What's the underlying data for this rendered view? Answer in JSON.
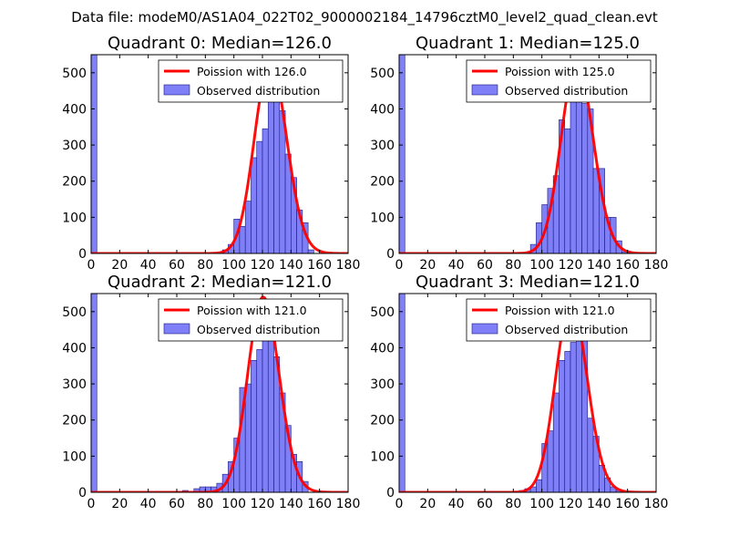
{
  "figure_title": "Data file: modeM0/AS1A04_022T02_9000002184_14796cztM0_level2_quad_clean.evt",
  "colors": {
    "bar_fill": "#7f7ff7",
    "bar_edge": "#1a1a80",
    "poisson_line": "#ff0000",
    "axis": "#000000"
  },
  "chart_data": [
    {
      "type": "bar",
      "title": "Quadrant 0: Median=126.0",
      "xlim": [
        0,
        180
      ],
      "ylim": [
        0,
        550
      ],
      "xticks": [
        0,
        20,
        40,
        60,
        80,
        100,
        120,
        140,
        160,
        180
      ],
      "yticks": [
        0,
        100,
        200,
        300,
        400,
        500
      ],
      "bin_width": 4,
      "legend": {
        "position": "top-right",
        "line_label": "Poission with 126.0",
        "bar_label": "Observed distribution"
      },
      "poisson_mean": 126.0,
      "poisson_peak": 530,
      "histogram": {
        "bin_starts": [
          0,
          88,
          92,
          96,
          100,
          104,
          108,
          112,
          116,
          120,
          124,
          128,
          132,
          136,
          140,
          144,
          148,
          152
        ],
        "counts": [
          550,
          3,
          10,
          25,
          95,
          75,
          145,
          265,
          310,
          345,
          445,
          505,
          395,
          275,
          210,
          120,
          85,
          10
        ]
      }
    },
    {
      "type": "bar",
      "title": "Quadrant 1: Median=125.0",
      "xlim": [
        0,
        180
      ],
      "ylim": [
        0,
        550
      ],
      "xticks": [
        0,
        20,
        40,
        60,
        80,
        100,
        120,
        140,
        160,
        180
      ],
      "yticks": [
        0,
        100,
        200,
        300,
        400,
        500
      ],
      "bin_width": 4,
      "legend": {
        "position": "top-right",
        "line_label": "Poission with 125.0",
        "bar_label": "Observed distribution"
      },
      "poisson_mean": 125.0,
      "poisson_peak": 530,
      "histogram": {
        "bin_starts": [
          0,
          92,
          96,
          100,
          104,
          108,
          112,
          116,
          120,
          124,
          128,
          132,
          136,
          140,
          144,
          148,
          152,
          156
        ],
        "counts": [
          550,
          25,
          85,
          135,
          180,
          215,
          370,
          345,
          445,
          495,
          415,
          400,
          235,
          235,
          100,
          100,
          35,
          5
        ]
      }
    },
    {
      "type": "bar",
      "title": "Quadrant 2: Median=121.0",
      "xlim": [
        0,
        180
      ],
      "ylim": [
        0,
        550
      ],
      "xticks": [
        0,
        20,
        40,
        60,
        80,
        100,
        120,
        140,
        160,
        180
      ],
      "yticks": [
        0,
        100,
        200,
        300,
        400,
        500
      ],
      "bin_width": 4,
      "legend": {
        "position": "top-right",
        "line_label": "Poission with 121.0",
        "bar_label": "Observed distribution"
      },
      "poisson_mean": 121.0,
      "poisson_peak": 540,
      "histogram": {
        "bin_starts": [
          0,
          64,
          72,
          76,
          80,
          84,
          88,
          92,
          96,
          100,
          104,
          108,
          112,
          116,
          120,
          124,
          128,
          132,
          136,
          140,
          144,
          148
        ],
        "counts": [
          550,
          5,
          10,
          15,
          15,
          15,
          25,
          50,
          85,
          150,
          290,
          300,
          365,
          395,
          430,
          470,
          375,
          275,
          185,
          105,
          85,
          30
        ]
      }
    },
    {
      "type": "bar",
      "title": "Quadrant 3: Median=121.0",
      "xlim": [
        0,
        180
      ],
      "ylim": [
        0,
        550
      ],
      "xticks": [
        0,
        20,
        40,
        60,
        80,
        100,
        120,
        140,
        160,
        180
      ],
      "yticks": [
        0,
        100,
        200,
        300,
        400,
        500
      ],
      "bin_width": 4,
      "legend": {
        "position": "top-right",
        "line_label": "Poission with 121.0",
        "bar_label": "Observed distribution"
      },
      "poisson_mean": 121.0,
      "poisson_peak": 525,
      "histogram": {
        "bin_starts": [
          0,
          84,
          88,
          92,
          96,
          100,
          104,
          108,
          112,
          116,
          120,
          124,
          128,
          132,
          136,
          140,
          144,
          148,
          152
        ],
        "counts": [
          550,
          5,
          10,
          15,
          35,
          135,
          170,
          275,
          365,
          390,
          415,
          515,
          460,
          205,
          155,
          75,
          40,
          15,
          5
        ]
      }
    }
  ]
}
